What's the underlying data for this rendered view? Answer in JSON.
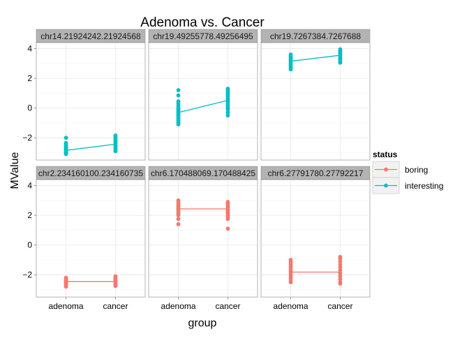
{
  "chart_data": {
    "type": "scatter",
    "title": "Adenoma vs. Cancer",
    "xlabel": "group",
    "ylabel": "MValue",
    "categories": [
      "adenoma",
      "cancer"
    ],
    "ylim": [
      -3.5,
      4.4
    ],
    "yticks": [
      -2,
      0,
      2,
      4
    ],
    "grid": true,
    "legend": {
      "title": "status",
      "position": "right",
      "entries": [
        {
          "name": "boring",
          "color": "#f8766d"
        },
        {
          "name": "interesting",
          "color": "#00bfc4"
        }
      ]
    },
    "panels": [
      {
        "label": "chr14.21924242.21924568",
        "status": "interesting",
        "means": [
          -2.85,
          -2.43
        ],
        "points": {
          "adenoma": [
            -2.0,
            -2.35,
            -2.45,
            -2.55,
            -2.6,
            -2.65,
            -2.7,
            -2.75,
            -2.8,
            -2.85,
            -2.9,
            -2.95,
            -3.0,
            -3.05,
            -3.1
          ],
          "cancer": [
            -1.85,
            -1.95,
            -2.05,
            -2.15,
            -2.25,
            -2.35,
            -2.45,
            -2.55,
            -2.65,
            -2.75,
            -2.85,
            -2.9
          ]
        }
      },
      {
        "label": "chr19.49255778.49256495",
        "status": "interesting",
        "means": [
          -0.3,
          0.52
        ],
        "points": {
          "adenoma": [
            1.2,
            0.85,
            0.45,
            0.3,
            0.15,
            0.0,
            -0.1,
            -0.2,
            -0.3,
            -0.4,
            -0.5,
            -0.6,
            -0.7,
            -0.8,
            -0.9,
            -1.0,
            -1.1
          ],
          "cancer": [
            1.3,
            1.2,
            1.1,
            1.0,
            0.9,
            0.8,
            0.7,
            0.6,
            0.5,
            0.4,
            0.3,
            0.2,
            0.1,
            0.0,
            -0.1,
            -0.3,
            -0.5
          ]
        }
      },
      {
        "label": "chr19.7267384.7267688",
        "status": "interesting",
        "means": [
          3.15,
          3.55
        ],
        "points": {
          "adenoma": [
            3.6,
            3.5,
            3.4,
            3.3,
            3.2,
            3.1,
            3.0,
            2.9,
            2.8,
            2.7,
            2.6
          ],
          "cancer": [
            3.95,
            3.85,
            3.75,
            3.65,
            3.55,
            3.45,
            3.35,
            3.25,
            3.15,
            3.05
          ]
        }
      },
      {
        "label": "chr2.234160100.234160735",
        "status": "boring",
        "means": [
          -2.45,
          -2.45
        ],
        "points": {
          "adenoma": [
            -2.2,
            -2.3,
            -2.4,
            -2.45,
            -2.5,
            -2.55,
            -2.6,
            -2.7,
            -2.8
          ],
          "cancer": [
            -2.1,
            -2.2,
            -2.3,
            -2.4,
            -2.45,
            -2.5,
            -2.6,
            -2.7,
            -2.75
          ]
        }
      },
      {
        "label": "chr6.170488069.170488425",
        "status": "boring",
        "means": [
          2.43,
          2.43
        ],
        "points": {
          "adenoma": [
            3.0,
            2.85,
            2.7,
            2.6,
            2.5,
            2.4,
            2.3,
            2.2,
            2.1,
            2.0,
            1.75,
            1.4
          ],
          "cancer": [
            2.9,
            2.8,
            2.7,
            2.6,
            2.5,
            2.4,
            2.3,
            2.2,
            2.1,
            2.0,
            1.9,
            1.75,
            1.1
          ]
        }
      },
      {
        "label": "chr6.27791780.27792217",
        "status": "boring",
        "means": [
          -1.82,
          -1.82
        ],
        "points": {
          "adenoma": [
            -1.0,
            -1.15,
            -1.3,
            -1.45,
            -1.6,
            -1.75,
            -1.9,
            -2.05,
            -2.2,
            -2.35,
            -2.5
          ],
          "cancer": [
            -0.8,
            -0.9,
            -1.1,
            -1.3,
            -1.5,
            -1.7,
            -1.9,
            -2.1,
            -2.3,
            -2.5,
            -2.6
          ]
        }
      }
    ]
  }
}
